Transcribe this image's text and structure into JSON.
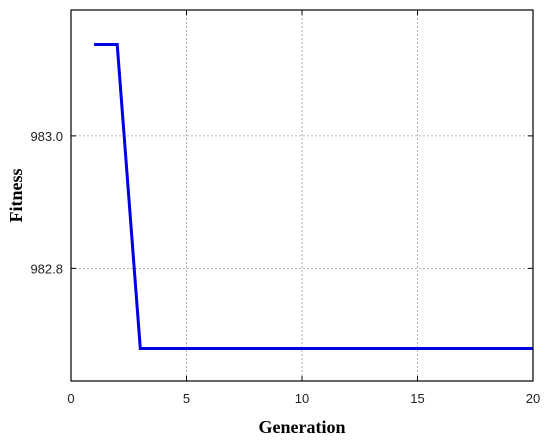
{
  "chart_data": {
    "type": "line",
    "title": "",
    "xlabel": "Generation",
    "ylabel": "Fitness",
    "xlim": [
      0,
      20
    ],
    "ylim": [
      982.63,
      983.19
    ],
    "xticks": [
      0,
      5,
      10,
      15,
      20
    ],
    "xtick_labels": [
      "0",
      "5",
      "10",
      "15",
      "20"
    ],
    "yticks": [
      982.8,
      983.0
    ],
    "ytick_labels": [
      "982.8",
      "983.0"
    ],
    "grid": true,
    "legend": "none",
    "series": [
      {
        "color": "#0000e6",
        "x": [
          1,
          2,
          3,
          4,
          5,
          6,
          7,
          8,
          9,
          10,
          11,
          12,
          13,
          14,
          15,
          16,
          17,
          18,
          19,
          20
        ],
        "y": [
          983.138,
          983.138,
          982.679,
          982.679,
          982.679,
          982.679,
          982.679,
          982.679,
          982.679,
          982.679,
          982.679,
          982.679,
          982.679,
          982.679,
          982.679,
          982.679,
          982.679,
          982.679,
          982.679,
          982.679
        ]
      }
    ]
  }
}
